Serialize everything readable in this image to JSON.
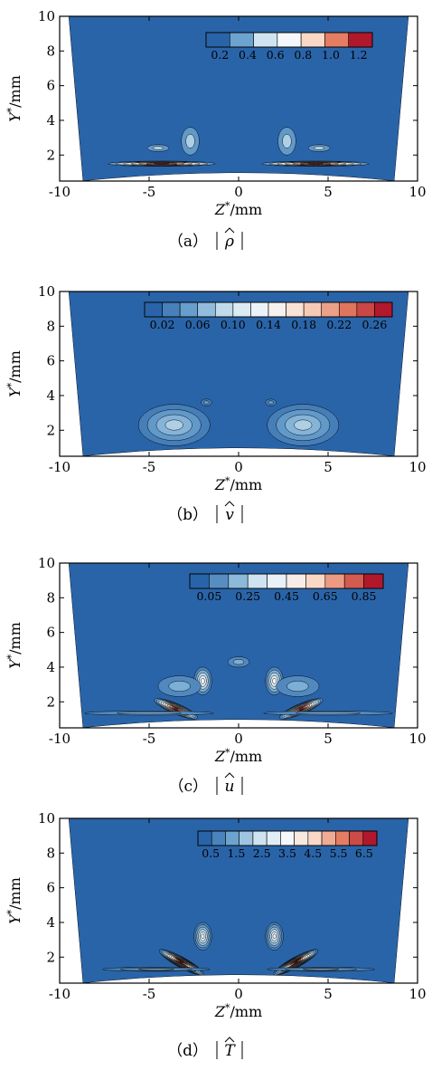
{
  "palette": [
    "#2a64a8",
    "#6ca3cf",
    "#cfe4f0",
    "#f5f7fa",
    "#f9d8c6",
    "#e47d61",
    "#b2182b"
  ],
  "chart_data": [
    {
      "type": "heatmap",
      "panel": "a",
      "caption": {
        "label": "（a）",
        "quantity": "ρ"
      },
      "xlabel": {
        "var": "Z",
        "sup": "*",
        "unit": "/mm"
      },
      "ylabel": {
        "var": "Y",
        "sup": "*",
        "unit": "/mm"
      },
      "xlim": [
        -10,
        10
      ],
      "ylim": [
        0.5,
        10
      ],
      "xticks": [
        -10,
        -5,
        0,
        5,
        10
      ],
      "yticks": [
        2,
        4,
        6,
        8,
        10
      ],
      "colorbar": {
        "ticks": [
          "0.2",
          "0.4",
          "0.6",
          "0.8",
          "1.0",
          "1.2"
        ],
        "levels": 7
      },
      "lobes": [
        {
          "z": -4.3,
          "y": 1.5,
          "az": 3.0,
          "ay": 0.15,
          "tilt": 0.0,
          "peak": 1.0
        },
        {
          "z": 4.3,
          "y": 1.5,
          "az": 3.0,
          "ay": 0.15,
          "tilt": 0.0,
          "peak": 1.0
        },
        {
          "z": -2.7,
          "y": 2.8,
          "az": 0.5,
          "ay": 0.8,
          "tilt": 0.0,
          "peak": 0.35
        },
        {
          "z": 2.7,
          "y": 2.8,
          "az": 0.5,
          "ay": 0.8,
          "tilt": 0.0,
          "peak": 0.35
        },
        {
          "z": -4.5,
          "y": 2.4,
          "az": 0.6,
          "ay": 0.2,
          "tilt": 0.0,
          "peak": 0.2
        },
        {
          "z": 4.5,
          "y": 2.4,
          "az": 0.6,
          "ay": 0.2,
          "tilt": 0.0,
          "peak": 0.2
        }
      ]
    },
    {
      "type": "heatmap",
      "panel": "b",
      "caption": {
        "label": "（b）",
        "quantity": "v"
      },
      "xlabel": {
        "var": "Z",
        "sup": "*",
        "unit": "/mm"
      },
      "ylabel": {
        "var": "Y",
        "sup": "*",
        "unit": "/mm"
      },
      "xlim": [
        -10,
        10
      ],
      "ylim": [
        0.5,
        10
      ],
      "xticks": [
        -10,
        -5,
        0,
        5,
        10
      ],
      "yticks": [
        2,
        4,
        6,
        8,
        10
      ],
      "colorbar": {
        "ticks": [
          "0.02",
          "0.06",
          "0.10",
          "0.14",
          "0.18",
          "0.22",
          "0.26"
        ],
        "levels": 14
      },
      "lobes": [
        {
          "z": -2.4,
          "y": 2.5,
          "az": 0.7,
          "ay": 0.45,
          "tilt": -0.6,
          "peak": 1.0
        },
        {
          "z": 2.4,
          "y": 2.5,
          "az": 0.7,
          "ay": 0.45,
          "tilt": 0.6,
          "peak": 1.0
        },
        {
          "z": -3.6,
          "y": 2.3,
          "az": 2.0,
          "ay": 1.2,
          "tilt": 0.0,
          "peak": 0.25
        },
        {
          "z": 3.6,
          "y": 2.3,
          "az": 2.0,
          "ay": 1.2,
          "tilt": 0.0,
          "peak": 0.25
        },
        {
          "z": -1.8,
          "y": 3.6,
          "az": 0.3,
          "ay": 0.2,
          "tilt": 0.0,
          "peak": 0.12
        },
        {
          "z": 1.8,
          "y": 3.6,
          "az": 0.3,
          "ay": 0.2,
          "tilt": 0.0,
          "peak": 0.12
        }
      ]
    },
    {
      "type": "heatmap",
      "panel": "c",
      "caption": {
        "label": "（c）",
        "quantity": "u"
      },
      "xlabel": {
        "var": "Z",
        "sup": "*",
        "unit": "/mm"
      },
      "ylabel": {
        "var": "Y",
        "sup": "*",
        "unit": "/mm"
      },
      "xlim": [
        -10,
        10
      ],
      "ylim": [
        0.5,
        10
      ],
      "xticks": [
        -10,
        -5,
        0,
        5,
        10
      ],
      "yticks": [
        2,
        4,
        6,
        8,
        10
      ],
      "colorbar": {
        "ticks": [
          "0.05",
          "0.25",
          "0.45",
          "0.65",
          "0.85"
        ],
        "levels": 10
      },
      "lobes": [
        {
          "z": -3.5,
          "y": 1.6,
          "az": 1.3,
          "ay": 0.3,
          "tilt": -0.4,
          "peak": 1.0
        },
        {
          "z": 3.5,
          "y": 1.6,
          "az": 1.3,
          "ay": 0.3,
          "tilt": 0.4,
          "peak": 1.0
        },
        {
          "z": -2.0,
          "y": 3.2,
          "az": 0.5,
          "ay": 0.8,
          "tilt": 0.0,
          "peak": 0.5
        },
        {
          "z": 2.0,
          "y": 3.2,
          "az": 0.5,
          "ay": 0.8,
          "tilt": 0.0,
          "peak": 0.5
        },
        {
          "z": -5.0,
          "y": 1.35,
          "az": 3.6,
          "ay": 0.12,
          "tilt": 0.0,
          "peak": 0.2
        },
        {
          "z": 5.0,
          "y": 1.35,
          "az": 3.6,
          "ay": 0.12,
          "tilt": 0.0,
          "peak": 0.2
        },
        {
          "z": -3.3,
          "y": 2.9,
          "az": 1.2,
          "ay": 0.6,
          "tilt": 0.0,
          "peak": 0.15
        },
        {
          "z": 3.3,
          "y": 2.9,
          "az": 1.2,
          "ay": 0.6,
          "tilt": 0.0,
          "peak": 0.15
        },
        {
          "z": 0.0,
          "y": 4.3,
          "az": 0.6,
          "ay": 0.3,
          "tilt": 0.0,
          "peak": 0.1
        }
      ]
    },
    {
      "type": "heatmap",
      "panel": "d",
      "caption": {
        "label": "（d）",
        "quantity": "T"
      },
      "xlabel": {
        "var": "Z",
        "sup": "*",
        "unit": "/mm"
      },
      "ylabel": {
        "var": "Y",
        "sup": "*",
        "unit": "/mm"
      },
      "xlim": [
        -10,
        10
      ],
      "ylim": [
        0.5,
        10
      ],
      "xticks": [
        -10,
        -5,
        0,
        5,
        10
      ],
      "yticks": [
        2,
        4,
        6,
        8,
        10
      ],
      "colorbar": {
        "ticks": [
          "0.5",
          "1.5",
          "2.5",
          "3.5",
          "4.5",
          "5.5",
          "6.5"
        ],
        "levels": 13
      },
      "lobes": [
        {
          "z": -3.2,
          "y": 1.7,
          "az": 1.4,
          "ay": 0.3,
          "tilt": -0.5,
          "peak": 1.0
        },
        {
          "z": 3.2,
          "y": 1.7,
          "az": 1.4,
          "ay": 0.3,
          "tilt": 0.5,
          "peak": 1.0
        },
        {
          "z": -2.0,
          "y": 3.2,
          "az": 0.5,
          "ay": 0.8,
          "tilt": 0.0,
          "peak": 0.45
        },
        {
          "z": 2.0,
          "y": 3.2,
          "az": 0.5,
          "ay": 0.8,
          "tilt": 0.0,
          "peak": 0.45
        },
        {
          "z": -4.6,
          "y": 1.3,
          "az": 3.0,
          "ay": 0.12,
          "tilt": 0.0,
          "peak": 0.2
        },
        {
          "z": 4.6,
          "y": 1.3,
          "az": 3.0,
          "ay": 0.12,
          "tilt": 0.0,
          "peak": 0.2
        }
      ]
    }
  ]
}
